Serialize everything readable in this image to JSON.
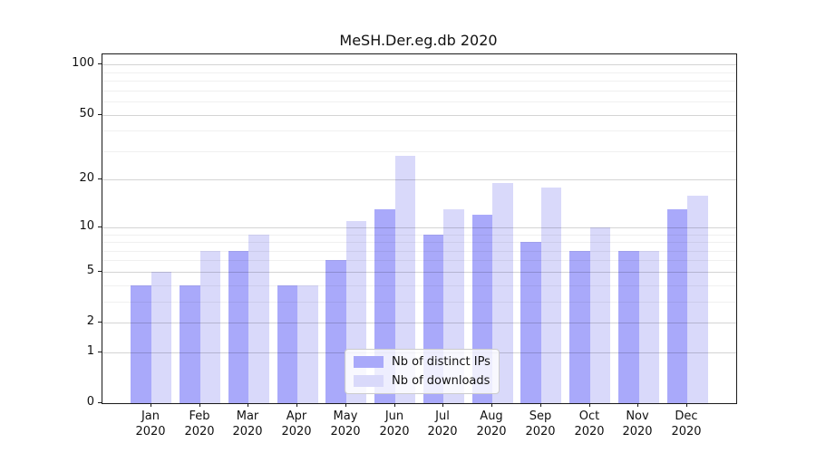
{
  "chart_data": {
    "type": "bar",
    "title": "MeSH.Der.eg.db 2020",
    "y_axis_type": "log1p",
    "categories": [
      "Jan",
      "Feb",
      "Mar",
      "Apr",
      "May",
      "Jun",
      "Jul",
      "Aug",
      "Sep",
      "Oct",
      "Nov",
      "Dec"
    ],
    "category_year_line": "2020",
    "series": [
      {
        "name": "Nb of distinct IPs",
        "color": "#a9a9fa",
        "values": [
          4,
          4,
          7,
          4,
          6,
          13,
          9,
          12,
          8,
          7,
          7,
          13
        ]
      },
      {
        "name": "Nb of downloads",
        "color": "#d9d9fa",
        "values": [
          5,
          7,
          9,
          4,
          11,
          28,
          13,
          19,
          18,
          10,
          7,
          16
        ]
      }
    ],
    "yticks": [
      0,
      1,
      2,
      5,
      10,
      20,
      50,
      100
    ],
    "minor_gridlines": [
      3,
      4,
      6,
      7,
      8,
      9,
      30,
      40,
      60,
      70,
      80,
      90
    ],
    "ylim": [
      0,
      115
    ],
    "grid": true,
    "legend_position": "lower center",
    "legend_entries": [
      "Nb of distinct IPs",
      "Nb of downloads"
    ]
  }
}
